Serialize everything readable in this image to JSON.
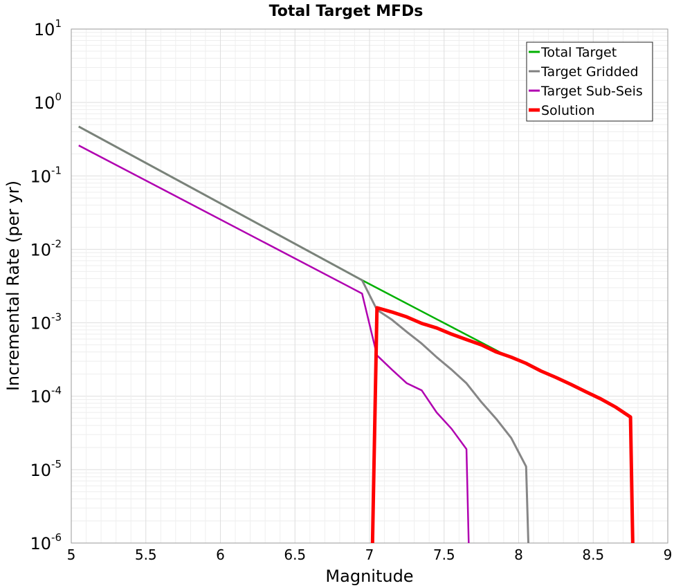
{
  "chart_data": {
    "type": "line",
    "title": "Total Target MFDs",
    "xlabel": "Magnitude",
    "ylabel": "Incremental Rate (per yr)",
    "xlim": [
      5,
      9
    ],
    "ylim": [
      1e-06,
      10
    ],
    "yscale": "log",
    "xticks": [
      5,
      5.5,
      6,
      6.5,
      7,
      7.5,
      8,
      8.5,
      9
    ],
    "xtick_labels": [
      "5",
      "5.5",
      "6",
      "6.5",
      "7",
      "7.5",
      "8",
      "8.5",
      "9"
    ],
    "ytick_exponents": [
      1,
      0,
      -1,
      -2,
      -3,
      -4,
      -5,
      -6
    ],
    "ytick_base": "10",
    "grid": true,
    "legend_position": "top-right",
    "series": [
      {
        "name": "Total Target",
        "color": "#00b000",
        "width": 2.5,
        "points": [
          [
            5.05,
            0.47
          ],
          [
            6.95,
            0.0038
          ],
          [
            7.95,
            0.00033
          ]
        ]
      },
      {
        "name": "Target Gridded",
        "color": "#808080",
        "width": 3,
        "points": [
          [
            5.05,
            0.47
          ],
          [
            6.95,
            0.0038
          ],
          [
            7.05,
            0.0015
          ],
          [
            7.15,
            0.0011
          ],
          [
            7.25,
            0.00075
          ],
          [
            7.35,
            0.00052
          ],
          [
            7.45,
            0.00034
          ],
          [
            7.55,
            0.00023
          ],
          [
            7.65,
            0.00015
          ],
          [
            7.75,
            8.3e-05
          ],
          [
            7.85,
            4.9e-05
          ],
          [
            7.95,
            2.7e-05
          ],
          [
            8.05,
            1.1e-05
          ],
          [
            8.065,
            1e-06
          ]
        ]
      },
      {
        "name": "Target Sub-Seis",
        "color": "#b000b0",
        "width": 2.5,
        "points": [
          [
            5.05,
            0.26
          ],
          [
            6.95,
            0.0025
          ],
          [
            7.05,
            0.00036
          ],
          [
            7.15,
            0.00023
          ],
          [
            7.25,
            0.00015
          ],
          [
            7.35,
            0.00012
          ],
          [
            7.45,
            6e-05
          ],
          [
            7.55,
            3.6e-05
          ],
          [
            7.65,
            1.9e-05
          ],
          [
            7.665,
            1e-06
          ]
        ]
      },
      {
        "name": "Solution",
        "color": "#ff0000",
        "width": 5,
        "points": [
          [
            7.02,
            1e-06
          ],
          [
            7.05,
            0.0016
          ],
          [
            7.15,
            0.0014
          ],
          [
            7.25,
            0.0012
          ],
          [
            7.35,
            0.00098
          ],
          [
            7.45,
            0.00085
          ],
          [
            7.55,
            0.0007
          ],
          [
            7.65,
            0.00059
          ],
          [
            7.75,
            0.0005
          ],
          [
            7.85,
            0.0004
          ],
          [
            7.95,
            0.00034
          ],
          [
            8.05,
            0.00028
          ],
          [
            8.15,
            0.00022
          ],
          [
            8.25,
            0.00018
          ],
          [
            8.35,
            0.000145
          ],
          [
            8.45,
            0.000115
          ],
          [
            8.55,
            9.2e-05
          ],
          [
            8.65,
            7.1e-05
          ],
          [
            8.75,
            5.2e-05
          ],
          [
            8.765,
            1e-06
          ]
        ]
      }
    ]
  }
}
